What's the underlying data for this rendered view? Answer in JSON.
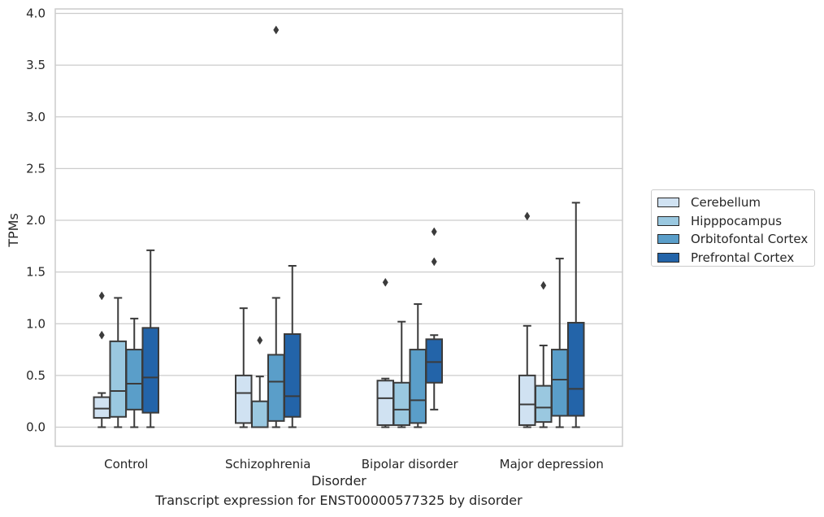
{
  "chart_data": {
    "type": "box",
    "caption": "Transcript expression for ENST00000577325 by disorder",
    "xlabel": "Disorder",
    "ylabel": "TPMs",
    "ylim": [
      -0.18,
      4.05
    ],
    "yticks": [
      "0.0",
      "0.5",
      "1.0",
      "1.5",
      "2.0",
      "2.5",
      "3.0",
      "3.5",
      "4.0"
    ],
    "ytick_values": [
      0,
      0.5,
      1.0,
      1.5,
      2.0,
      2.5,
      3.0,
      3.5,
      4.0
    ],
    "grid": true,
    "legend_position": "right",
    "categories": [
      "Control",
      "Schizophrenia",
      "Bipolar disorder",
      "Major depression"
    ],
    "series": [
      {
        "name": "Cerebellum",
        "color": "#d0e2f2",
        "boxes": [
          {
            "whislo": 0.0,
            "q1": 0.09,
            "med": 0.18,
            "q3": 0.29,
            "whishi": 0.33,
            "fliers": [
              0.89,
              1.27
            ]
          },
          {
            "whislo": 0.0,
            "q1": 0.04,
            "med": 0.33,
            "q3": 0.5,
            "whishi": 1.15,
            "fliers": []
          },
          {
            "whislo": 0.0,
            "q1": 0.02,
            "med": 0.28,
            "q3": 0.45,
            "whishi": 0.47,
            "fliers": [
              1.4
            ]
          },
          {
            "whislo": 0.0,
            "q1": 0.02,
            "med": 0.22,
            "q3": 0.5,
            "whishi": 0.98,
            "fliers": [
              2.04
            ]
          }
        ]
      },
      {
        "name": "Hipppocampus",
        "color": "#9ac8e0",
        "boxes": [
          {
            "whislo": 0.0,
            "q1": 0.1,
            "med": 0.35,
            "q3": 0.83,
            "whishi": 1.25,
            "fliers": []
          },
          {
            "whislo": 0.0,
            "q1": 0.0,
            "med": 0.0,
            "q3": 0.25,
            "whishi": 0.49,
            "fliers": [
              0.84
            ]
          },
          {
            "whislo": 0.0,
            "q1": 0.02,
            "med": 0.17,
            "q3": 0.43,
            "whishi": 1.02,
            "fliers": []
          },
          {
            "whislo": 0.0,
            "q1": 0.05,
            "med": 0.19,
            "q3": 0.4,
            "whishi": 0.79,
            "fliers": [
              1.37
            ]
          }
        ]
      },
      {
        "name": "Orbitofontal Cortex",
        "color": "#5a9ec9",
        "boxes": [
          {
            "whislo": 0.0,
            "q1": 0.17,
            "med": 0.42,
            "q3": 0.75,
            "whishi": 1.05,
            "fliers": []
          },
          {
            "whislo": 0.0,
            "q1": 0.06,
            "med": 0.44,
            "q3": 0.7,
            "whishi": 1.25,
            "fliers": [
              3.84
            ]
          },
          {
            "whislo": 0.0,
            "q1": 0.04,
            "med": 0.26,
            "q3": 0.75,
            "whishi": 1.19,
            "fliers": []
          },
          {
            "whislo": 0.0,
            "q1": 0.11,
            "med": 0.46,
            "q3": 0.75,
            "whishi": 1.63,
            "fliers": []
          }
        ]
      },
      {
        "name": "Prefrontal Cortex",
        "color": "#2364a9",
        "boxes": [
          {
            "whislo": 0.0,
            "q1": 0.14,
            "med": 0.48,
            "q3": 0.96,
            "whishi": 1.71,
            "fliers": []
          },
          {
            "whislo": 0.0,
            "q1": 0.1,
            "med": 0.3,
            "q3": 0.9,
            "whishi": 1.56,
            "fliers": []
          },
          {
            "whislo": 0.17,
            "q1": 0.43,
            "med": 0.63,
            "q3": 0.85,
            "whishi": 0.89,
            "fliers": [
              1.6,
              1.89
            ]
          },
          {
            "whislo": 0.0,
            "q1": 0.11,
            "med": 0.37,
            "q3": 1.01,
            "whishi": 2.17,
            "fliers": []
          }
        ]
      }
    ]
  }
}
